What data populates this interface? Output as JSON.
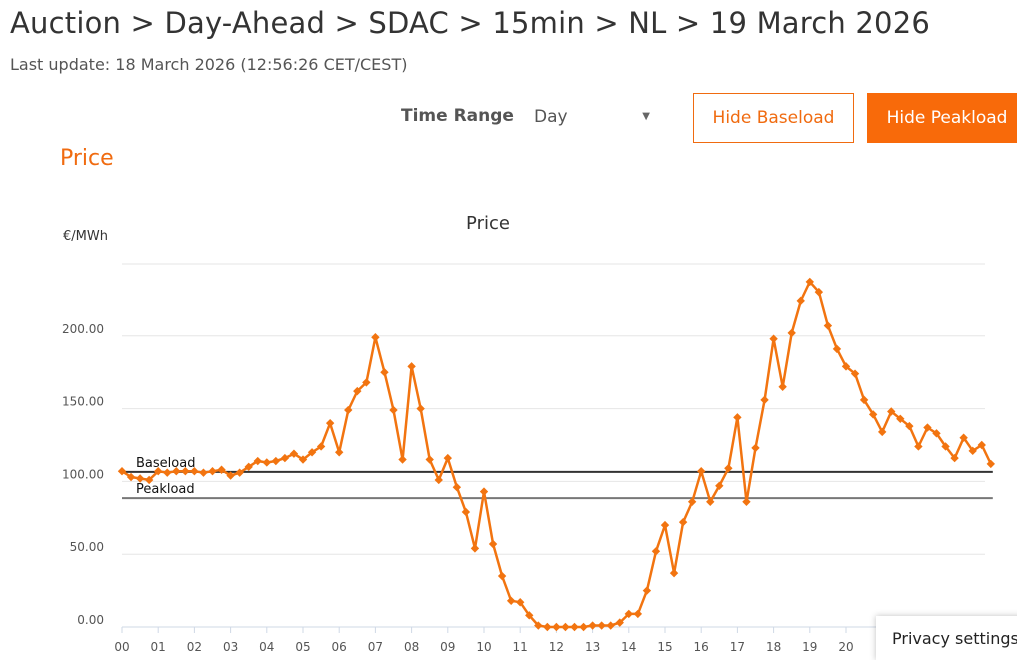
{
  "header": {
    "breadcrumb": "Auction > Day-Ahead > SDAC > 15min > NL > 19 March 2026",
    "last_update": "Last update: 18 March 2026 (12:56:26 CET/CEST)"
  },
  "controls": {
    "time_range_label": "Time Range",
    "time_range_value": "Day",
    "hide_baseload_label": "Hide Baseload",
    "hide_peakload_label": "Hide Peakload"
  },
  "section_title": "Price",
  "privacy_label": "Privacy settings",
  "colors": {
    "accent": "#f06b10",
    "series": "#f27410",
    "baseload": "#333333",
    "peakload": "#777777"
  },
  "chart_data": {
    "type": "line",
    "title": "Price",
    "ylabel": "€/MWh",
    "ylim": [
      0,
      250
    ],
    "yticks": [
      "0.00",
      "50.00",
      "100.00",
      "150.00",
      "200.00"
    ],
    "xticks": [
      "00",
      "01",
      "02",
      "03",
      "04",
      "05",
      "06",
      "07",
      "08",
      "09",
      "10",
      "11",
      "12",
      "13",
      "14",
      "15",
      "16",
      "17",
      "18",
      "19",
      "20"
    ],
    "x_start_hour": 0,
    "x_step_hours": 0.25,
    "grid": true,
    "series": [
      {
        "values": [
          107,
          103,
          102,
          101,
          107,
          106,
          107,
          107,
          107,
          106,
          107,
          108,
          104,
          106,
          110,
          114,
          113,
          114,
          116,
          119,
          115,
          120,
          124,
          140,
          120,
          149,
          162,
          168,
          199,
          175,
          149,
          115,
          179,
          150,
          115,
          101,
          116,
          96,
          79,
          54,
          93,
          57,
          35,
          18,
          17,
          8,
          1,
          0,
          0,
          0,
          0,
          0,
          1,
          1,
          1,
          3,
          9,
          9,
          25,
          52,
          70,
          37,
          72,
          86,
          107,
          86,
          97,
          109,
          144,
          86,
          123,
          156,
          198,
          165,
          202,
          224,
          237,
          230,
          207,
          191,
          179,
          174,
          156,
          146,
          134,
          148,
          143,
          138,
          124,
          137,
          133,
          124,
          116,
          130,
          121,
          125,
          112
        ]
      }
    ],
    "reference_lines": [
      {
        "name": "Baseload",
        "value": 106.5
      },
      {
        "name": "Peakload",
        "value": 88.5
      }
    ]
  }
}
